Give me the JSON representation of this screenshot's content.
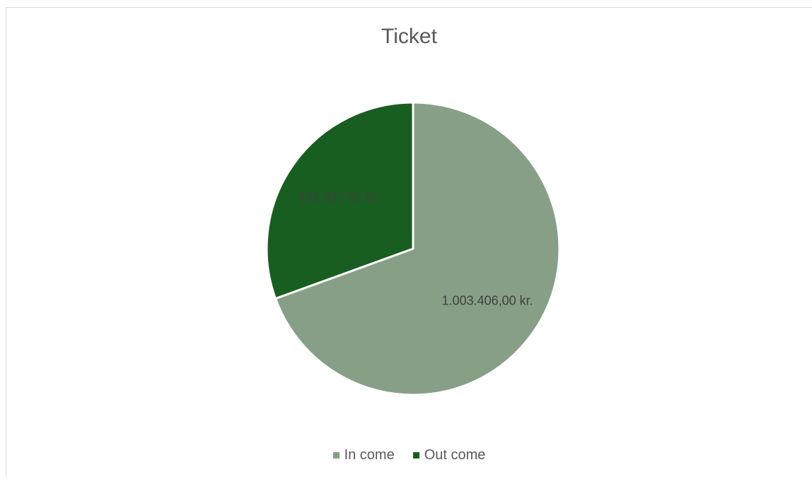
{
  "chart_data": {
    "type": "pie",
    "title": "Ticket",
    "categories": [
      "In come",
      "Out come"
    ],
    "values": [
      1003406.0,
      441327.02
    ],
    "data_labels": [
      "1.003.406,00 kr.",
      "441.327,02 kr."
    ],
    "colors": [
      "#879f87",
      "#185e20"
    ],
    "legend_position": "bottom",
    "slice_border": "#ffffff"
  }
}
